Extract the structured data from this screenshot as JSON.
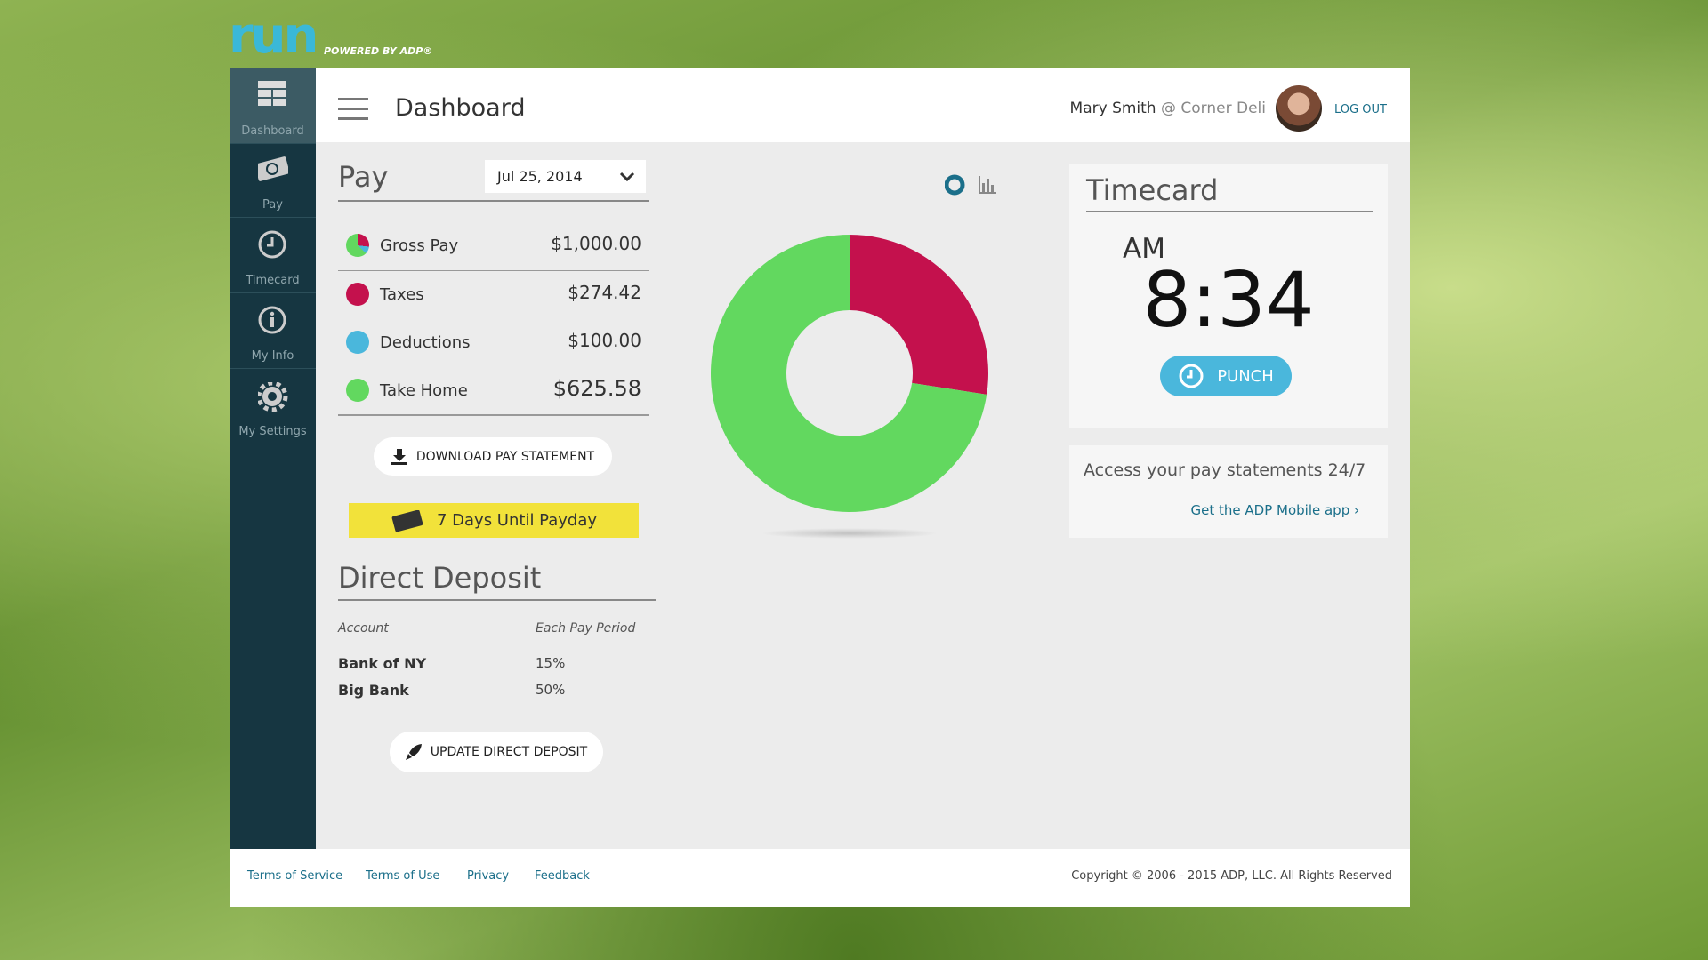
{
  "logo": {
    "brand": "run",
    "powered": "POWERED BY ADP®"
  },
  "nav": [
    "Dashboard",
    "Pay",
    "Timecard",
    "My Info",
    "My Settings"
  ],
  "header": {
    "title": "Dashboard",
    "user": "Mary Smith",
    "company": "@ Corner Deli",
    "logout": "LOG OUT"
  },
  "pay": {
    "title": "Pay",
    "date": "Jul 25, 2014",
    "items": [
      {
        "label": "Gross Pay",
        "value": 1000,
        "value_label": "$1,000.00"
      },
      {
        "label": "Taxes",
        "value": 274.42,
        "value_label": "$274.42"
      },
      {
        "label": "Deductions",
        "value": 100,
        "value_label": "$100.00"
      },
      {
        "label": "Take Home",
        "value": 625.58,
        "value_label": "$625.58"
      }
    ],
    "download": "DOWNLOAD PAY STATEMENT",
    "payday": "7 Days Until Payday"
  },
  "deposit": {
    "title": "Direct Deposit",
    "headers": [
      "Account",
      "Each Pay Period"
    ],
    "rows": [
      [
        "Bank of NY",
        "15%"
      ],
      [
        "Big Bank",
        "50%"
      ]
    ],
    "button": "UPDATE DIRECT DEPOSIT"
  },
  "timecard": {
    "title": "Timecard",
    "period": "AM",
    "time": "8:34",
    "button": "PUNCH"
  },
  "mobile": {
    "text": "Access your pay statements 24/7",
    "link": "Get the ADP Mobile app ›"
  },
  "footer": {
    "links": [
      "Terms of Service",
      "Terms of Use",
      "Privacy",
      "Feedback"
    ],
    "copyright": "Copyright © 2006 - 2015 ADP, LLC. All Rights Reserved"
  }
}
